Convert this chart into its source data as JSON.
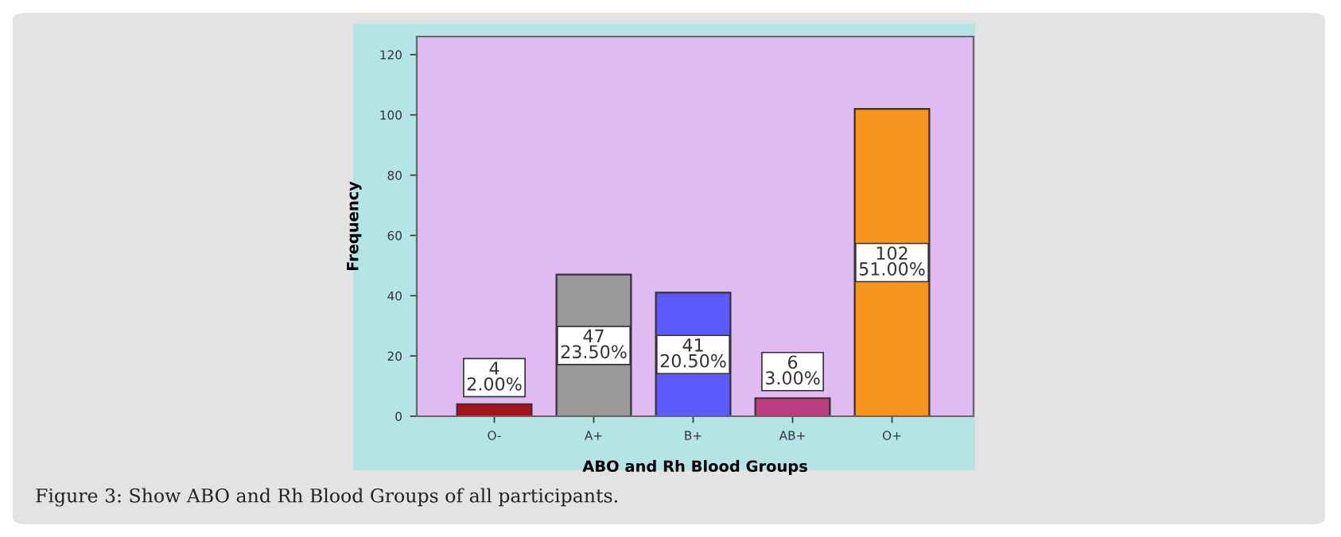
{
  "chart_data": {
    "type": "bar",
    "xlabel": "ABO and Rh Blood Groups",
    "ylabel": "Frequency",
    "categories": [
      "O-",
      "A+",
      "B+",
      "AB+",
      "O+"
    ],
    "values": [
      4,
      47,
      41,
      6,
      102
    ],
    "colors": [
      "#a3121e",
      "#999999",
      "#5a5aff",
      "#bb3d7f",
      "#f7941d"
    ],
    "value_labels": [
      "4\n2.00%",
      "47\n23.50%",
      "41\n20.50%",
      "6\n3.00%",
      "102\n51.00%"
    ],
    "ylim": [
      0,
      126
    ],
    "yticks": [
      0,
      20,
      40,
      60,
      80,
      100,
      120
    ],
    "grid": false,
    "annotations": [
      "Figure 3: Show ABO and Rh Blood Groups of all participants."
    ]
  }
}
